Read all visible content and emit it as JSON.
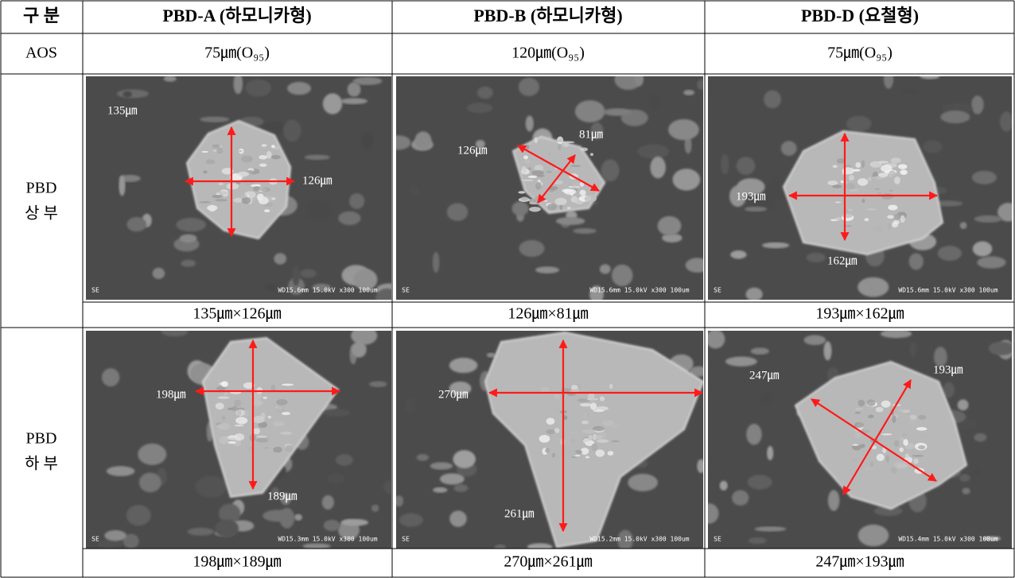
{
  "header": [
    "구  분",
    "PBD-A (하모니카형)",
    "PBD-B (하모니카형)",
    "PBD-D (요철형)"
  ],
  "aos": {
    "label": "AOS",
    "values": [
      "75㎛(O₉₅)",
      "120㎛(O₉₅)",
      "75㎛(O₉₅)"
    ]
  },
  "upper": {
    "label": [
      "PBD",
      "상 부"
    ],
    "images": [
      {
        "labels": [
          "135㎛",
          "126㎛"
        ],
        "sem": "SE",
        "footer": "WD15.6mm 15.0kV x300  100um"
      },
      {
        "labels": [
          "126㎛",
          "81㎛"
        ],
        "sem": "SE",
        "footer": "WD15.6mm 15.0kV x300  100um"
      },
      {
        "labels": [
          "193㎛",
          "162㎛"
        ],
        "sem": "SE",
        "footer": "WD15.6mm 15.0kV x300  100um"
      }
    ],
    "captions": [
      "135㎛×126㎛",
      "126㎛×81㎛",
      "193㎛×162㎛"
    ]
  },
  "lower": {
    "label": [
      "PBD",
      "하 부"
    ],
    "images": [
      {
        "labels": [
          "198㎛",
          "189㎛"
        ],
        "sem": "SE",
        "footer": "WD15.3mm 15.0kV x300  100um"
      },
      {
        "labels": [
          "270㎛",
          "261㎛"
        ],
        "sem": "SE",
        "footer": "WD15.2mm 15.0kV x300  100um"
      },
      {
        "labels": [
          "247㎛",
          "193㎛"
        ],
        "sem": "SE",
        "footer": "WD15.4mm 15.0kV x300  100um"
      }
    ],
    "captions": [
      "198㎛×189㎛",
      "270㎛×261㎛",
      "247㎛×193㎛"
    ]
  }
}
